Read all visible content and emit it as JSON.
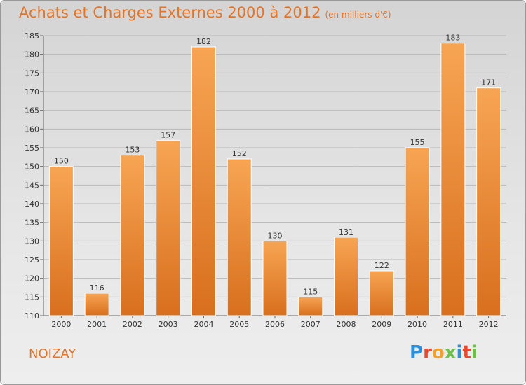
{
  "title": "Achats et Charges Externes 2000 à 2012",
  "subtitle": "(en milliers d'€)",
  "city": "NOIZAY",
  "logo": {
    "letters": [
      "P",
      "r",
      "o",
      "x",
      "i",
      "t",
      "i"
    ],
    "colors": [
      "#2f8fd8",
      "#e8492d",
      "#f2a12a",
      "#6cc04a",
      "#2f8fd8",
      "#e8492d",
      "#6cc04a"
    ]
  },
  "colors": {
    "bar_top": "#f7a553",
    "bar_bottom": "#d86f1e",
    "title": "#e2742a",
    "grid": "#b8b8b8"
  },
  "chart_data": {
    "type": "bar",
    "title": "Achats et Charges Externes 2000 à 2012",
    "subtitle": "(en milliers d'€)",
    "categories": [
      "2000",
      "2001",
      "2002",
      "2003",
      "2004",
      "2005",
      "2006",
      "2007",
      "2008",
      "2009",
      "2010",
      "2011",
      "2012"
    ],
    "values": [
      150,
      116,
      153,
      157,
      182,
      152,
      130,
      115,
      131,
      122,
      155,
      183,
      171
    ],
    "ylim": [
      110,
      185
    ],
    "yticks": [
      110,
      115,
      120,
      125,
      130,
      135,
      140,
      145,
      150,
      155,
      160,
      165,
      170,
      175,
      180,
      185
    ],
    "grid": true,
    "xlabel": "",
    "ylabel": ""
  }
}
